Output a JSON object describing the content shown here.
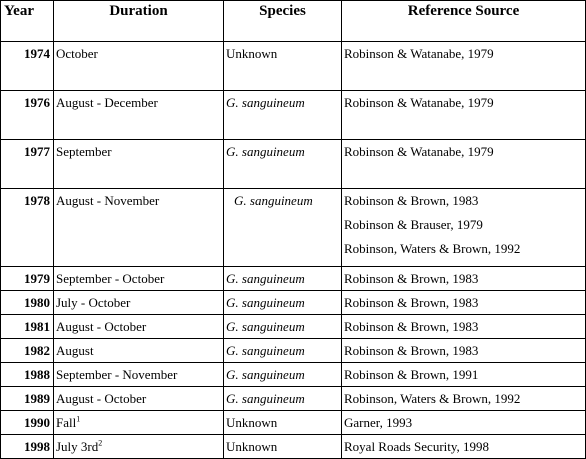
{
  "headers": {
    "year": "Year",
    "duration": "Duration",
    "species": "Species",
    "reference": "Reference Source"
  },
  "rows": [
    {
      "year": "1974",
      "duration": "October",
      "species": "Unknown",
      "species_italic": false,
      "refs": [
        "Robinson & Watanabe, 1979"
      ]
    },
    {
      "year": "1976",
      "duration": "August - December",
      "species": "G. sanguineum",
      "species_italic": true,
      "refs": [
        "Robinson & Watanabe, 1979"
      ]
    },
    {
      "year": "1977",
      "duration": "September",
      "species": "G. sanguineum",
      "species_italic": true,
      "refs": [
        "Robinson & Watanabe, 1979"
      ]
    },
    {
      "year": "1978",
      "duration": "August - November",
      "species": "G. sanguineum",
      "species_italic": true,
      "refs": [
        "Robinson & Brown, 1983",
        "Robinson & Brauser, 1979",
        "Robinson, Waters & Brown, 1992"
      ]
    },
    {
      "year": "1979",
      "duration": "September - October",
      "species": "G. sanguineum",
      "species_italic": true,
      "refs": [
        "Robinson & Brown, 1983"
      ]
    },
    {
      "year": "1980",
      "duration": "July - October",
      "species": "G. sanguineum",
      "species_italic": true,
      "refs": [
        "Robinson & Brown, 1983"
      ]
    },
    {
      "year": "1981",
      "duration": "August - October",
      "species": "G. sanguineum",
      "species_italic": true,
      "refs": [
        "Robinson & Brown, 1983"
      ]
    },
    {
      "year": "1982",
      "duration": "August",
      "species": "G. sanguineum",
      "species_italic": true,
      "refs": [
        "Robinson & Brown, 1983"
      ]
    },
    {
      "year": "1988",
      "duration": "September - November",
      "species": "G. sanguineum",
      "species_italic": true,
      "refs": [
        "Robinson & Brown, 1991"
      ]
    },
    {
      "year": "1989",
      "duration": "August - October",
      "species": "G. sanguineum",
      "species_italic": true,
      "refs": [
        "Robinson, Waters & Brown, 1992"
      ]
    },
    {
      "year": "1990",
      "duration": "Fall",
      "duration_sup": "1",
      "species": "Unknown",
      "species_italic": false,
      "refs": [
        "Garner, 1993"
      ]
    },
    {
      "year": "1998",
      "duration": "July 3rd",
      "duration_sup": "2",
      "species": "Unknown",
      "species_italic": false,
      "refs": [
        "Royal Roads Security, 1998"
      ]
    }
  ]
}
